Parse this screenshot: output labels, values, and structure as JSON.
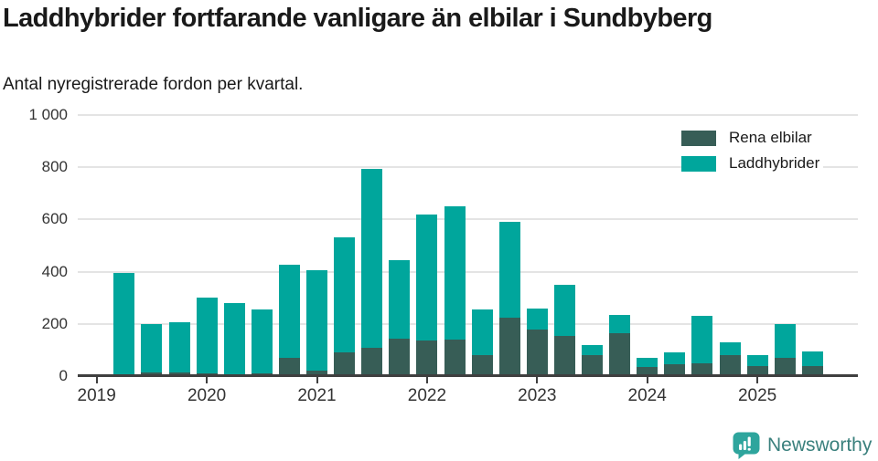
{
  "header": {
    "title": "Laddhybrider fortfarande vanligare än elbilar i Sundbyberg",
    "subtitle": "Antal nyregistrerade fordon per kvartal."
  },
  "colors": {
    "rena_elbilar": "#375d56",
    "laddhybrider": "#00a69c",
    "grid": "#e4e4e4",
    "axis": "#3f3f3f",
    "tick_text": "#333333",
    "title_text": "#1a1a1a",
    "logo_icon": "#2ea59d",
    "logo_text": "#3a807d"
  },
  "legend": [
    {
      "label": "Rena elbilar",
      "color_key": "rena_elbilar"
    },
    {
      "label": "Laddhybrider",
      "color_key": "laddhybrider"
    }
  ],
  "chart_data": {
    "type": "bar",
    "stacked": true,
    "title": "Laddhybrider fortfarande vanligare än elbilar i Sundbyberg",
    "subtitle": "Antal nyregistrerade fordon per kvartal.",
    "ylabel": "",
    "xlabel": "",
    "ylim": [
      0,
      1000
    ],
    "yticks": [
      0,
      200,
      400,
      600,
      800,
      1000
    ],
    "ytick_labels": [
      "0",
      "200",
      "400",
      "600",
      "800",
      "1 000"
    ],
    "xtick_years": [
      2019,
      2020,
      2021,
      2022,
      2023,
      2024,
      2025
    ],
    "grid": true,
    "legend_position": "top-right",
    "series_names": [
      "Rena elbilar",
      "Laddhybrider"
    ],
    "quarters": [
      {
        "year": 2019,
        "quarter": 2,
        "rena_elbilar": 5,
        "laddhybrider": 390
      },
      {
        "year": 2019,
        "quarter": 3,
        "rena_elbilar": 15,
        "laddhybrider": 185
      },
      {
        "year": 2019,
        "quarter": 4,
        "rena_elbilar": 15,
        "laddhybrider": 190
      },
      {
        "year": 2020,
        "quarter": 1,
        "rena_elbilar": 10,
        "laddhybrider": 290
      },
      {
        "year": 2020,
        "quarter": 2,
        "rena_elbilar": 5,
        "laddhybrider": 275
      },
      {
        "year": 2020,
        "quarter": 3,
        "rena_elbilar": 10,
        "laddhybrider": 245
      },
      {
        "year": 2020,
        "quarter": 4,
        "rena_elbilar": 70,
        "laddhybrider": 355
      },
      {
        "year": 2021,
        "quarter": 1,
        "rena_elbilar": 20,
        "laddhybrider": 385
      },
      {
        "year": 2021,
        "quarter": 2,
        "rena_elbilar": 90,
        "laddhybrider": 440
      },
      {
        "year": 2021,
        "quarter": 3,
        "rena_elbilar": 110,
        "laddhybrider": 685
      },
      {
        "year": 2021,
        "quarter": 4,
        "rena_elbilar": 145,
        "laddhybrider": 300
      },
      {
        "year": 2022,
        "quarter": 1,
        "rena_elbilar": 135,
        "laddhybrider": 485
      },
      {
        "year": 2022,
        "quarter": 2,
        "rena_elbilar": 140,
        "laddhybrider": 510
      },
      {
        "year": 2022,
        "quarter": 3,
        "rena_elbilar": 80,
        "laddhybrider": 175
      },
      {
        "year": 2022,
        "quarter": 4,
        "rena_elbilar": 225,
        "laddhybrider": 365
      },
      {
        "year": 2023,
        "quarter": 1,
        "rena_elbilar": 180,
        "laddhybrider": 80
      },
      {
        "year": 2023,
        "quarter": 2,
        "rena_elbilar": 155,
        "laddhybrider": 195
      },
      {
        "year": 2023,
        "quarter": 3,
        "rena_elbilar": 80,
        "laddhybrider": 40
      },
      {
        "year": 2023,
        "quarter": 4,
        "rena_elbilar": 165,
        "laddhybrider": 70
      },
      {
        "year": 2024,
        "quarter": 1,
        "rena_elbilar": 35,
        "laddhybrider": 35
      },
      {
        "year": 2024,
        "quarter": 2,
        "rena_elbilar": 45,
        "laddhybrider": 45
      },
      {
        "year": 2024,
        "quarter": 3,
        "rena_elbilar": 50,
        "laddhybrider": 180
      },
      {
        "year": 2024,
        "quarter": 4,
        "rena_elbilar": 80,
        "laddhybrider": 50
      },
      {
        "year": 2025,
        "quarter": 1,
        "rena_elbilar": 40,
        "laddhybrider": 40
      },
      {
        "year": 2025,
        "quarter": 2,
        "rena_elbilar": 70,
        "laddhybrider": 130
      },
      {
        "year": 2025,
        "quarter": 3,
        "rena_elbilar": 40,
        "laddhybrider": 55
      }
    ]
  },
  "footer": {
    "brand": "Newsworthy"
  }
}
